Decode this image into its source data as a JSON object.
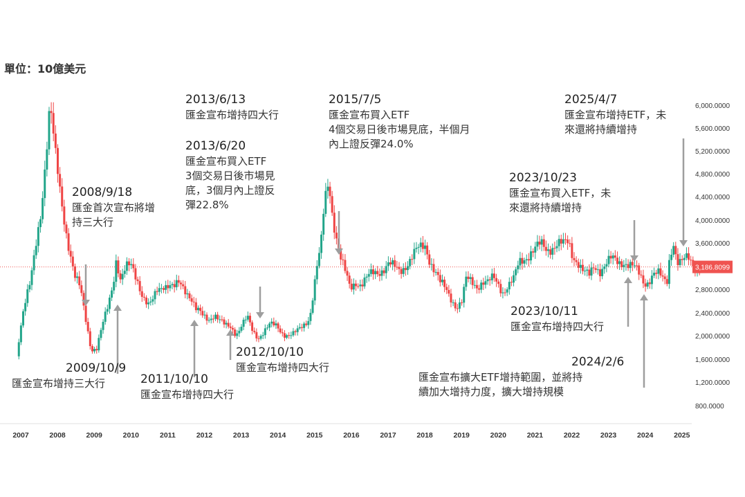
{
  "unit_label": "單位：10億美元",
  "colors": {
    "up": "#22a58a",
    "down": "#ef4444",
    "ref_line": "#ef5350",
    "price_badge": "#ef5350",
    "arrow": "#9e9e9e"
  },
  "chart_data": {
    "type": "candlestick",
    "title": "",
    "xlabel": "",
    "ylabel": "",
    "ylim": [
      600,
      6300
    ],
    "xlim": [
      2006.9,
      2025.6
    ],
    "x_ticks": [
      "2007",
      "2008",
      "2009",
      "2010",
      "2011",
      "2012",
      "2013",
      "2014",
      "2015",
      "2016",
      "2017",
      "2018",
      "2019",
      "2020",
      "2021",
      "2022",
      "2023",
      "2024",
      "2025"
    ],
    "y_ticks": [
      "6,000.0000",
      "5,600.0000",
      "5,200.0000",
      "4,800.0000",
      "4,400.0000",
      "4,000.0000",
      "3,600.0000",
      "2,800.0000",
      "2,400.0000",
      "2,000.0000",
      "1,600.0000",
      "1,200.0000",
      "800.0000"
    ],
    "y_tick_values": [
      6000,
      5600,
      5200,
      4800,
      4400,
      4000,
      3600,
      2800,
      2400,
      2000,
      1600,
      1200,
      800
    ],
    "last_price_label": "3,186.8099",
    "last_price": 3186.81,
    "anchors": [
      [
        2006.9,
        1650
      ],
      [
        2007.1,
        2450
      ],
      [
        2007.3,
        2900
      ],
      [
        2007.45,
        3600
      ],
      [
        2007.6,
        4300
      ],
      [
        2007.75,
        5400
      ],
      [
        2007.83,
        6000
      ],
      [
        2007.95,
        5200
      ],
      [
        2008.1,
        4500
      ],
      [
        2008.3,
        3700
      ],
      [
        2008.5,
        3000
      ],
      [
        2008.65,
        2800
      ],
      [
        2008.8,
        2300
      ],
      [
        2008.95,
        1780
      ],
      [
        2009.1,
        1780
      ],
      [
        2009.25,
        2150
      ],
      [
        2009.4,
        2500
      ],
      [
        2009.55,
        2950
      ],
      [
        2009.63,
        3350
      ],
      [
        2009.75,
        2950
      ],
      [
        2009.9,
        3150
      ],
      [
        2010.05,
        3200
      ],
      [
        2010.2,
        3000
      ],
      [
        2010.35,
        2700
      ],
      [
        2010.5,
        2500
      ],
      [
        2010.6,
        2550
      ],
      [
        2010.75,
        2800
      ],
      [
        2010.9,
        2900
      ],
      [
        2011.05,
        2880
      ],
      [
        2011.2,
        2800
      ],
      [
        2011.35,
        2900
      ],
      [
        2011.5,
        2820
      ],
      [
        2011.65,
        2700
      ],
      [
        2011.8,
        2450
      ],
      [
        2012.0,
        2320
      ],
      [
        2012.15,
        2300
      ],
      [
        2012.3,
        2400
      ],
      [
        2012.45,
        2260
      ],
      [
        2012.6,
        2150
      ],
      [
        2012.75,
        2150
      ],
      [
        2012.9,
        2050
      ],
      [
        2013.05,
        2200
      ],
      [
        2013.2,
        2300
      ],
      [
        2013.35,
        2050
      ],
      [
        2013.5,
        1980
      ],
      [
        2013.65,
        2100
      ],
      [
        2013.8,
        2180
      ],
      [
        2014.0,
        2150
      ],
      [
        2014.15,
        2060
      ],
      [
        2014.3,
        2030
      ],
      [
        2014.45,
        2020
      ],
      [
        2014.6,
        2080
      ],
      [
        2014.75,
        2200
      ],
      [
        2014.9,
        2350
      ],
      [
        2015.0,
        2780
      ],
      [
        2015.1,
        3200
      ],
      [
        2015.2,
        3500
      ],
      [
        2015.3,
        4300
      ],
      [
        2015.42,
        4700
      ],
      [
        2015.5,
        4200
      ],
      [
        2015.6,
        3800
      ],
      [
        2015.75,
        3300
      ],
      [
        2015.85,
        3100
      ],
      [
        2016.0,
        2800
      ],
      [
        2016.15,
        2950
      ],
      [
        2016.3,
        2900
      ],
      [
        2016.45,
        2980
      ],
      [
        2016.6,
        3050
      ],
      [
        2016.75,
        3100
      ],
      [
        2016.9,
        3180
      ],
      [
        2017.05,
        3250
      ],
      [
        2017.2,
        3150
      ],
      [
        2017.35,
        3100
      ],
      [
        2017.5,
        3230
      ],
      [
        2017.65,
        3350
      ],
      [
        2017.8,
        3450
      ],
      [
        2017.9,
        3480
      ],
      [
        2018.05,
        3550
      ],
      [
        2018.15,
        3350
      ],
      [
        2018.3,
        3150
      ],
      [
        2018.45,
        2900
      ],
      [
        2018.6,
        2780
      ],
      [
        2018.75,
        2650
      ],
      [
        2018.9,
        2520
      ],
      [
        2019.05,
        2600
      ],
      [
        2019.15,
        2950
      ],
      [
        2019.3,
        2920
      ],
      [
        2019.45,
        2870
      ],
      [
        2019.6,
        2950
      ],
      [
        2019.75,
        2900
      ],
      [
        2019.9,
        2980
      ],
      [
        2020.05,
        2880
      ],
      [
        2020.15,
        2780
      ],
      [
        2020.3,
        2870
      ],
      [
        2020.45,
        2950
      ],
      [
        2020.6,
        3250
      ],
      [
        2020.75,
        3350
      ],
      [
        2020.9,
        3450
      ],
      [
        2021.05,
        3500
      ],
      [
        2021.2,
        3550
      ],
      [
        2021.35,
        3480
      ],
      [
        2021.5,
        3560
      ],
      [
        2021.65,
        3600
      ],
      [
        2021.8,
        3550
      ],
      [
        2021.95,
        3600
      ],
      [
        2022.05,
        3400
      ],
      [
        2022.2,
        3300
      ],
      [
        2022.35,
        3100
      ],
      [
        2022.5,
        3000
      ],
      [
        2022.65,
        3200
      ],
      [
        2022.8,
        3150
      ],
      [
        2022.95,
        3250
      ],
      [
        2023.1,
        3300
      ],
      [
        2023.3,
        3250
      ],
      [
        2023.45,
        3300
      ],
      [
        2023.6,
        3250
      ],
      [
        2023.75,
        3150
      ],
      [
        2023.9,
        3000
      ],
      [
        2024.0,
        2900
      ],
      [
        2024.1,
        2950
      ],
      [
        2024.25,
        3100
      ],
      [
        2024.4,
        3050
      ],
      [
        2024.5,
        2950
      ],
      [
        2024.62,
        2900
      ],
      [
        2024.7,
        3400
      ],
      [
        2024.8,
        3650
      ],
      [
        2024.9,
        3300
      ],
      [
        2025.0,
        3250
      ],
      [
        2025.1,
        3280
      ],
      [
        2025.2,
        3320
      ],
      [
        2025.3,
        3250
      ],
      [
        2025.45,
        3187
      ]
    ],
    "annotations": [
      {
        "date": "2008/9/18",
        "lines": [
          "匯金首次宣布將增",
          "持三大行"
        ]
      },
      {
        "date": "2009/10/9",
        "lines": [
          "匯金宣布增持三大行"
        ]
      },
      {
        "date": "2011/10/10",
        "lines": [
          "匯金宣布增持四大行"
        ]
      },
      {
        "date": "2012/10/10",
        "lines": [
          "匯金宣布增持四大行"
        ]
      },
      {
        "date": "2013/6/13",
        "lines": [
          "匯金宣布增持四大行"
        ]
      },
      {
        "date": "2013/6/20",
        "lines": [
          "匯金宣布買入ETF",
          "3個交易日後市場見",
          "底，3個月內上證反",
          "彈22.8%"
        ]
      },
      {
        "date": "2015/7/5",
        "lines": [
          "匯金宣布買入ETF",
          "4個交易日後市場見底，半個月",
          "內上證反彈24.0%"
        ]
      },
      {
        "date": "2023/10/23",
        "lines": [
          "匯金宣布買入ETF，未",
          "來還將持續增持"
        ]
      },
      {
        "date": "2023/10/11",
        "lines": [
          "匯金宣布增持四大行"
        ]
      },
      {
        "date": "2024/2/6",
        "lines": [
          "匯金宣布擴大ETF增持範圍，並將持",
          "續加大增持力度，擴大增持規模"
        ]
      },
      {
        "date": "2025/4/7",
        "lines": [
          "匯金宣布增持ETF，未",
          "來還將持續增持"
        ]
      }
    ]
  }
}
